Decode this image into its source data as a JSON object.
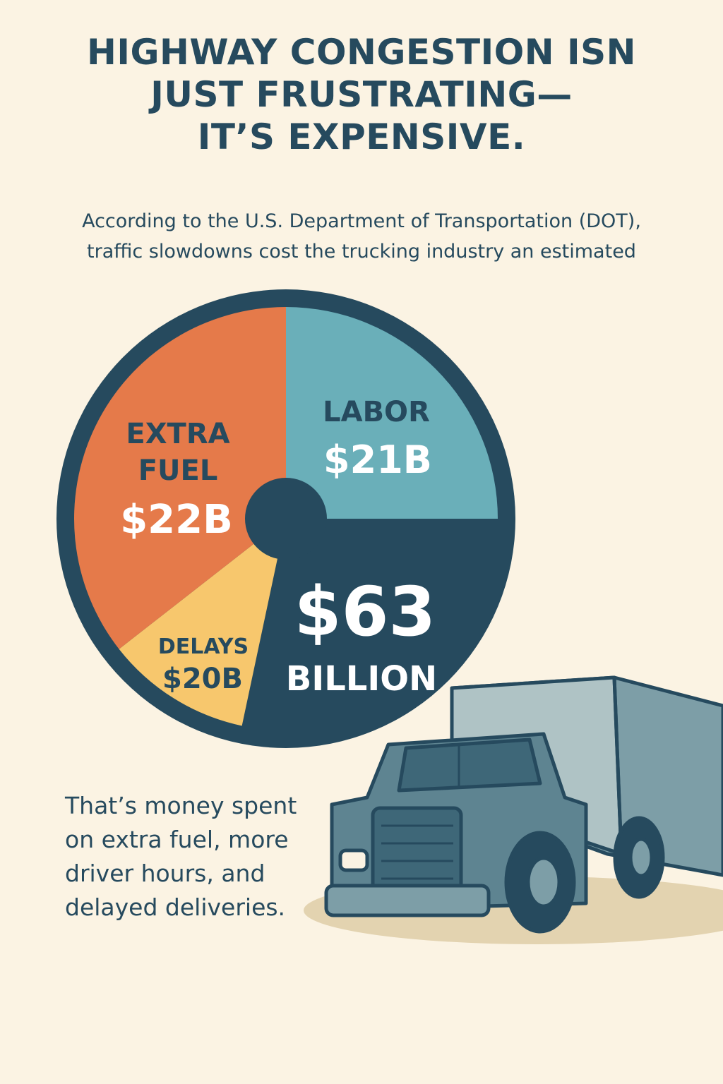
{
  "headline": {
    "line1": "HIGHWAY CONGESTION ISN",
    "line2": "JUST FRUSTRATING—",
    "line3": "IT’S EXPENSIVE."
  },
  "subhead": {
    "line1": "According to the U.S. Department of Transportation (DOT),",
    "line2": "traffic slowdowns cost the trucking industry an estimated"
  },
  "chart_data": {
    "type": "pie",
    "total": {
      "value": "$63",
      "unit": "BILLION"
    },
    "slices": [
      {
        "label": "LABOR",
        "value": 21,
        "value_label": "$21B",
        "color": "#6AAFB9"
      },
      {
        "label": "EXTRA FUEL",
        "label_lines": [
          "EXTRA",
          "FUEL"
        ],
        "value": 22,
        "value_label": "$22B",
        "color": "#E57A4A"
      },
      {
        "label": "DELAYS",
        "value": 20,
        "value_label": "$20B",
        "color": "#F7C76D"
      }
    ],
    "colors": {
      "ring": "#264A5E",
      "background": "#FBF3E3",
      "dark_text": "#264A5E",
      "light_text": "#FFFFFF"
    }
  },
  "body_text": {
    "line1": "That’s money spent",
    "line2": "on extra fuel, more",
    "line3": "driver hours, and",
    "line4": "delayed deliveries."
  },
  "illustration": {
    "icon": "semi-truck-icon"
  }
}
